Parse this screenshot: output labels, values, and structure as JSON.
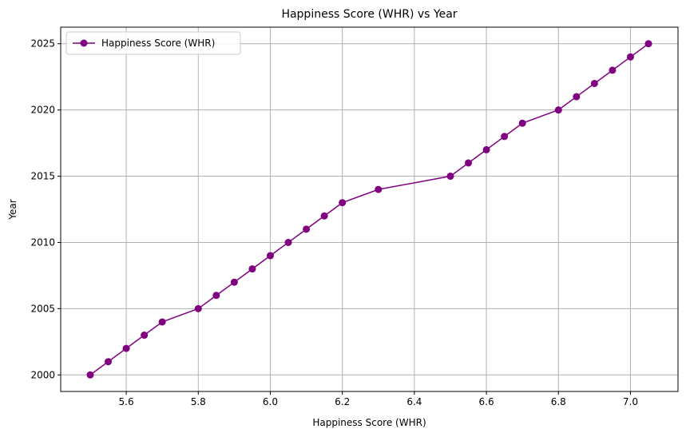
{
  "chart_data": {
    "type": "line",
    "title": "Happiness Score (WHR) vs Year",
    "xlabel": "Happiness Score (WHR)",
    "ylabel": "Year",
    "xlim": [
      5.418,
      7.132
    ],
    "ylim": [
      1998.75,
      2026.25
    ],
    "xticks": [
      5.6,
      5.8,
      6.0,
      6.2,
      6.4,
      6.6,
      6.8,
      7.0
    ],
    "xtick_labels": [
      "5.6",
      "5.8",
      "6.0",
      "6.2",
      "6.4",
      "6.6",
      "6.8",
      "7.0"
    ],
    "yticks": [
      2000,
      2005,
      2010,
      2015,
      2020,
      2025
    ],
    "ytick_labels": [
      "2000",
      "2005",
      "2010",
      "2015",
      "2020",
      "2025"
    ],
    "grid": true,
    "legend_position": "upper-left",
    "series": [
      {
        "name": "Happiness Score (WHR)",
        "color": "#800080",
        "marker": "circle",
        "x": [
          5.5,
          5.55,
          5.6,
          5.65,
          5.7,
          5.8,
          5.85,
          5.9,
          5.95,
          6.0,
          6.05,
          6.1,
          6.15,
          6.2,
          6.3,
          6.5,
          6.55,
          6.6,
          6.65,
          6.7,
          6.8,
          6.85,
          6.9,
          6.95,
          7.0,
          7.05
        ],
        "y": [
          2000,
          2001,
          2002,
          2003,
          2004,
          2005,
          2006,
          2007,
          2008,
          2009,
          2010,
          2011,
          2012,
          2013,
          2014,
          2015,
          2016,
          2017,
          2018,
          2019,
          2020,
          2021,
          2022,
          2023,
          2024,
          2025
        ]
      }
    ]
  }
}
